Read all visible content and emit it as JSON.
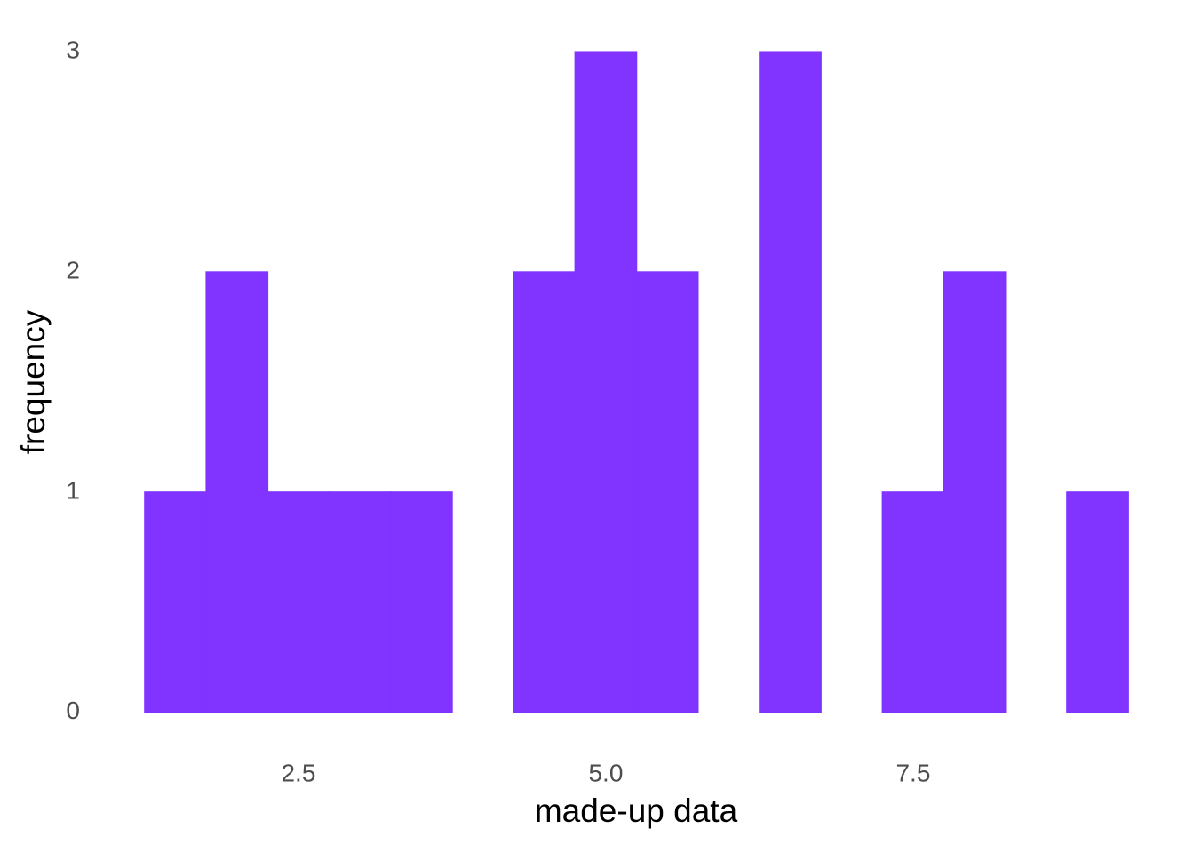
{
  "chart_data": {
    "type": "histogram",
    "xlabel": "made-up data",
    "ylabel": "frequency",
    "bins": [
      1.25,
      1.75,
      2.25,
      2.75,
      3.25,
      3.75,
      4.25,
      4.75,
      5.25,
      5.75,
      6.25,
      6.75,
      7.25,
      7.75,
      8.25,
      8.75,
      9.25
    ],
    "values": [
      1,
      2,
      1,
      1,
      1,
      0,
      2,
      3,
      2,
      0,
      3,
      0,
      1,
      2,
      0,
      1
    ],
    "color": "#8133ff",
    "xlim": [
      0.85,
      9.65
    ],
    "xticks": [
      2.5,
      {
        "value": 5,
        "label": "5.0"
      },
      7.5
    ],
    "ylim": [
      -0.15,
      3.15
    ],
    "yticks": [
      0,
      1,
      2,
      3
    ],
    "grid": false
  }
}
